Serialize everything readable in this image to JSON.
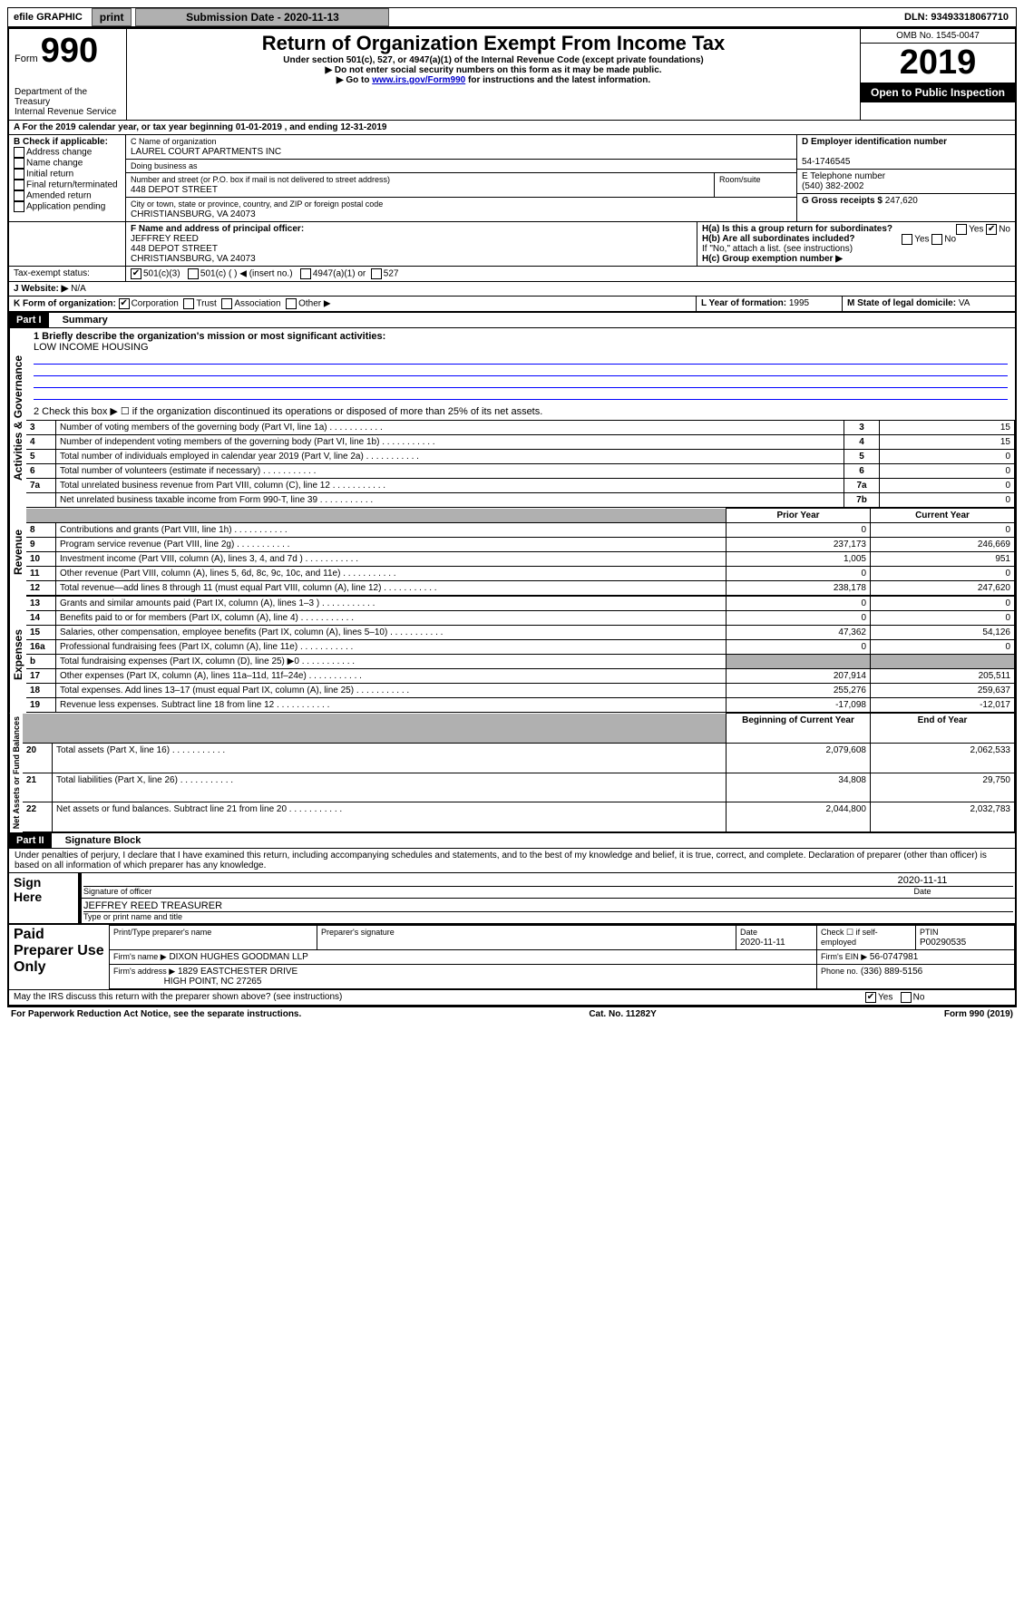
{
  "topbar": {
    "efile": "efile GRAPHIC",
    "print": "print",
    "subdate_label": "Submission Date - 2020-11-13",
    "dln": "DLN: 93493318067710"
  },
  "header": {
    "form_prefix": "Form",
    "form_no": "990",
    "title": "Return of Organization Exempt From Income Tax",
    "sub1": "Under section 501(c), 527, or 4947(a)(1) of the Internal Revenue Code (except private foundations)",
    "sub2": "▶ Do not enter social security numbers on this form as it may be made public.",
    "sub3_pre": "▶ Go to ",
    "sub3_link": "www.irs.gov/Form990",
    "sub3_post": " for instructions and the latest information.",
    "dept": "Department of the Treasury\nInternal Revenue Service",
    "omb": "OMB No. 1545-0047",
    "year": "2019",
    "inspection": "Open to Public Inspection"
  },
  "lineA": "A For the 2019 calendar year, or tax year beginning 01-01-2019   , and ending 12-31-2019",
  "boxB": {
    "label": "B Check if applicable:",
    "opts": [
      "Address change",
      "Name change",
      "Initial return",
      "Final return/terminated",
      "Amended return",
      "Application pending"
    ]
  },
  "boxC": {
    "label_name": "C Name of organization",
    "org": "LAUREL COURT APARTMENTS INC",
    "dba": "Doing business as",
    "addr_label": "Number and street (or P.O. box if mail is not delivered to street address)",
    "room": "Room/suite",
    "street": "448 DEPOT STREET",
    "city_label": "City or town, state or province, country, and ZIP or foreign postal code",
    "city": "CHRISTIANSBURG, VA  24073"
  },
  "boxD": {
    "label": "D Employer identification number",
    "ein": "54-1746545"
  },
  "boxE": {
    "label": "E Telephone number",
    "phone": "(540) 382-2002"
  },
  "boxG": {
    "label": "G Gross receipts $",
    "val": "247,620"
  },
  "boxF": {
    "label": "F  Name and address of principal officer:",
    "name": "JEFFREY REED",
    "street": "448 DEPOT STREET",
    "city": "CHRISTIANSBURG, VA  24073"
  },
  "boxH": {
    "a": "H(a)  Is this a group return for subordinates?",
    "b": "H(b)  Are all subordinates included?",
    "note": "If \"No,\" attach a list. (see instructions)",
    "c": "H(c)  Group exemption number ▶"
  },
  "taxexempt": {
    "label": "Tax-exempt status:",
    "o1": "501(c)(3)",
    "o2": "501(c) (  )  ◀ (insert no.)",
    "o3": "4947(a)(1) or",
    "o4": "527"
  },
  "website": {
    "label": "J   Website: ▶",
    "val": "N/A"
  },
  "boxK": {
    "label": "K Form of organization:",
    "opts": [
      "Corporation",
      "Trust",
      "Association",
      "Other ▶"
    ]
  },
  "boxL": {
    "label": "L Year of formation:",
    "val": "1995"
  },
  "boxM": {
    "label": "M State of legal domicile:",
    "val": "VA"
  },
  "partI": {
    "title": "Part I",
    "subtitle": "Summary"
  },
  "summary": {
    "q1": "1  Briefly describe the organization's mission or most significant activities:",
    "mission": "LOW INCOME HOUSING",
    "q2": "2   Check this box ▶ ☐  if the organization discontinued its operations or disposed of more than 25% of its net assets.",
    "rows_gov": [
      {
        "n": "3",
        "t": "Number of voting members of the governing body (Part VI, line 1a)",
        "k": "3",
        "v": "15"
      },
      {
        "n": "4",
        "t": "Number of independent voting members of the governing body (Part VI, line 1b)",
        "k": "4",
        "v": "15"
      },
      {
        "n": "5",
        "t": "Total number of individuals employed in calendar year 2019 (Part V, line 2a)",
        "k": "5",
        "v": "0"
      },
      {
        "n": "6",
        "t": "Total number of volunteers (estimate if necessary)",
        "k": "6",
        "v": "0"
      },
      {
        "n": "7a",
        "t": "Total unrelated business revenue from Part VIII, column (C), line 12",
        "k": "7a",
        "v": "0"
      },
      {
        "n": "",
        "t": "Net unrelated business taxable income from Form 990-T, line 39",
        "k": "7b",
        "v": "0"
      }
    ],
    "col_prior": "Prior Year",
    "col_curr": "Current Year",
    "rows_rev": [
      {
        "n": "8",
        "t": "Contributions and grants (Part VIII, line 1h)",
        "p": "0",
        "c": "0"
      },
      {
        "n": "9",
        "t": "Program service revenue (Part VIII, line 2g)",
        "p": "237,173",
        "c": "246,669"
      },
      {
        "n": "10",
        "t": "Investment income (Part VIII, column (A), lines 3, 4, and 7d )",
        "p": "1,005",
        "c": "951"
      },
      {
        "n": "11",
        "t": "Other revenue (Part VIII, column (A), lines 5, 6d, 8c, 9c, 10c, and 11e)",
        "p": "0",
        "c": "0"
      },
      {
        "n": "12",
        "t": "Total revenue—add lines 8 through 11 (must equal Part VIII, column (A), line 12)",
        "p": "238,178",
        "c": "247,620"
      }
    ],
    "rows_exp": [
      {
        "n": "13",
        "t": "Grants and similar amounts paid (Part IX, column (A), lines 1–3 )",
        "p": "0",
        "c": "0"
      },
      {
        "n": "14",
        "t": "Benefits paid to or for members (Part IX, column (A), line 4)",
        "p": "0",
        "c": "0"
      },
      {
        "n": "15",
        "t": "Salaries, other compensation, employee benefits (Part IX, column (A), lines 5–10)",
        "p": "47,362",
        "c": "54,126"
      },
      {
        "n": "16a",
        "t": "Professional fundraising fees (Part IX, column (A), line 11e)",
        "p": "0",
        "c": "0"
      },
      {
        "n": "b",
        "t": "Total fundraising expenses (Part IX, column (D), line 25) ▶0",
        "p": "",
        "c": "",
        "shade": true
      },
      {
        "n": "17",
        "t": "Other expenses (Part IX, column (A), lines 11a–11d, 11f–24e)",
        "p": "207,914",
        "c": "205,511"
      },
      {
        "n": "18",
        "t": "Total expenses. Add lines 13–17 (must equal Part IX, column (A), line 25)",
        "p": "255,276",
        "c": "259,637"
      },
      {
        "n": "19",
        "t": "Revenue less expenses. Subtract line 18 from line 12",
        "p": "-17,098",
        "c": "-12,017"
      }
    ],
    "col_begin": "Beginning of Current Year",
    "col_end": "End of Year",
    "rows_net": [
      {
        "n": "20",
        "t": "Total assets (Part X, line 16)",
        "p": "2,079,608",
        "c": "2,062,533"
      },
      {
        "n": "21",
        "t": "Total liabilities (Part X, line 26)",
        "p": "34,808",
        "c": "29,750"
      },
      {
        "n": "22",
        "t": "Net assets or fund balances. Subtract line 21 from line 20",
        "p": "2,044,800",
        "c": "2,032,783"
      }
    ]
  },
  "sidelabels": {
    "gov": "Activities & Governance",
    "rev": "Revenue",
    "exp": "Expenses",
    "net": "Net Assets or Fund Balances"
  },
  "partII": {
    "title": "Part II",
    "subtitle": "Signature Block"
  },
  "perjury": "Under penalties of perjury, I declare that I have examined this return, including accompanying schedules and statements, and to the best of my knowledge and belief, it is true, correct, and complete. Declaration of preparer (other than officer) is based on all information of which preparer has any knowledge.",
  "sign": {
    "here": "Sign Here",
    "sig_label": "Signature of officer",
    "date": "2020-11-11",
    "date_label": "Date",
    "name": "JEFFREY REED  TREASURER",
    "name_label": "Type or print name and title"
  },
  "preparer": {
    "title": "Paid Preparer Use Only",
    "h1": "Print/Type preparer's name",
    "h2": "Preparer's signature",
    "h3": "Date",
    "date": "2020-11-11",
    "check_label": "Check ☐ if self-employed",
    "ptin_label": "PTIN",
    "ptin": "P00290535",
    "firm_label": "Firm's name    ▶",
    "firm": "DIXON HUGHES GOODMAN LLP",
    "ein_label": "Firm's EIN ▶",
    "ein": "56-0747981",
    "addr_label": "Firm's address ▶",
    "addr1": "1829 EASTCHESTER DRIVE",
    "addr2": "HIGH POINT, NC  27265",
    "phone_label": "Phone no.",
    "phone": "(336) 889-5156"
  },
  "discuss": "May the IRS discuss this return with the preparer shown above? (see instructions)",
  "footer": {
    "left": "For Paperwork Reduction Act Notice, see the separate instructions.",
    "mid": "Cat. No. 11282Y",
    "right": "Form 990 (2019)"
  },
  "yesno": {
    "yes": "Yes",
    "no": "No"
  }
}
